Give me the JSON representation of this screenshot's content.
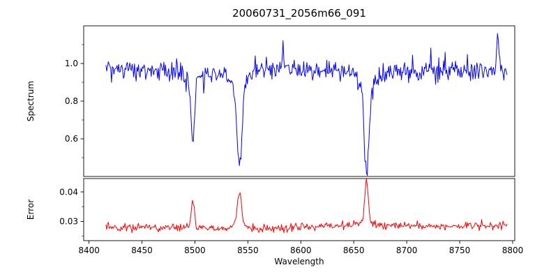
{
  "title": "20060731_2056m66_091",
  "colors": {
    "spectrum": "#0000ff",
    "error": "#ff0000",
    "axis": "#000000",
    "background": "#ffffff"
  },
  "axes": {
    "xlabel": "Wavelength",
    "xlim": [
      8395,
      8802
    ],
    "xticks": [
      {
        "v": 8400,
        "label": "8400"
      },
      {
        "v": 8450,
        "label": "8450"
      },
      {
        "v": 8500,
        "label": "8500"
      },
      {
        "v": 8550,
        "label": "8550"
      },
      {
        "v": 8600,
        "label": "8600"
      },
      {
        "v": 8650,
        "label": "8650"
      },
      {
        "v": 8700,
        "label": "8700"
      },
      {
        "v": 8750,
        "label": "8750"
      },
      {
        "v": 8800,
        "label": "8800"
      }
    ]
  },
  "chart_data": [
    {
      "type": "line",
      "series": "spectrum",
      "ylabel": "Spectrum",
      "color": "#0000ff",
      "ylim": [
        0.4,
        1.2
      ],
      "yticks": [
        {
          "v": 0.6,
          "label": "0.6"
        },
        {
          "v": 0.8,
          "label": "0.8"
        },
        {
          "v": 1.0,
          "label": "1.0"
        }
      ],
      "yticks_minor": [
        0.5,
        0.7,
        0.9,
        1.1
      ],
      "x_range": [
        8416,
        8795
      ],
      "x_step": 0.75,
      "baseline": 0.962,
      "wobble_amp": 0.008,
      "wobble_period": 155,
      "tilt": 0,
      "noise_sigma": 0.026,
      "spike_prob": 0.05,
      "spike_mult": 2.3,
      "seed": 91,
      "features": [
        {
          "label": "absorption-line",
          "center": 8498.0,
          "amp": -0.345,
          "sigma": 1.6,
          "wing_amp": -0.04,
          "wing_sigma": 4.0
        },
        {
          "label": "absorption-line",
          "center": 8542.1,
          "amp": -0.42,
          "sigma": 2.2,
          "wing_amp": -0.09,
          "wing_sigma": 6.5
        },
        {
          "label": "absorption-line",
          "center": 8662.1,
          "amp": -0.43,
          "sigma": 2.2,
          "wing_amp": -0.09,
          "wing_sigma": 6.5
        },
        {
          "label": "upward-spike",
          "center": 8583.0,
          "amp": 0.13,
          "sigma": 0.8
        },
        {
          "label": "upward-spike",
          "center": 8786.0,
          "amp": 0.19,
          "sigma": 1.0
        }
      ]
    },
    {
      "type": "line",
      "series": "error",
      "ylabel": "Error",
      "color": "#ff0000",
      "ylim": [
        0.0235,
        0.0445
      ],
      "yticks": [
        {
          "v": 0.03,
          "label": "0.03"
        },
        {
          "v": 0.04,
          "label": "0.04"
        }
      ],
      "yticks_minor": [
        0.025,
        0.035
      ],
      "x_range": [
        8416,
        8795
      ],
      "x_step": 0.75,
      "baseline": 0.0282,
      "wobble_amp": 0.0004,
      "wobble_period": 210,
      "tilt": 4e-06,
      "noise_sigma": 0.0006,
      "spike_prob": 0.05,
      "spike_mult": 2.0,
      "seed": 66,
      "features": [
        {
          "label": "error-peak",
          "center": 8498.0,
          "amp": 0.0088,
          "sigma": 1.5
        },
        {
          "label": "error-peak",
          "center": 8542.1,
          "amp": 0.0118,
          "sigma": 1.9,
          "wing_amp": 0.0012,
          "wing_sigma": 6.0
        },
        {
          "label": "error-peak",
          "center": 8662.1,
          "amp": 0.0138,
          "sigma": 1.7,
          "wing_amp": 0.001,
          "wing_sigma": 6.0
        }
      ]
    }
  ]
}
